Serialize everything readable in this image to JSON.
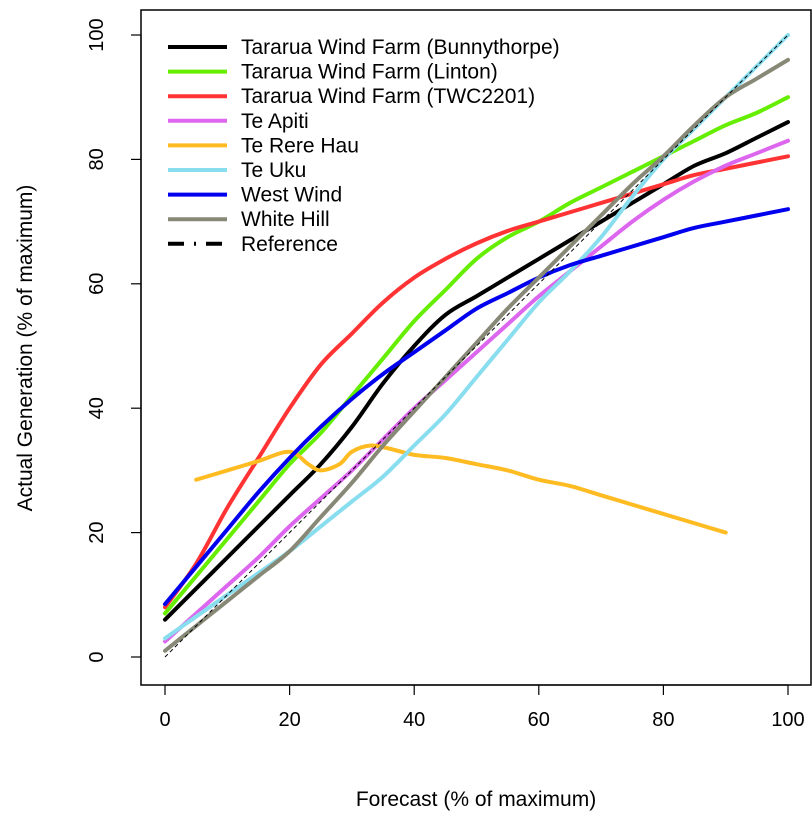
{
  "chart_data": {
    "type": "line",
    "title": "",
    "xlabel": "Forecast (% of maximum)",
    "ylabel": "Actual Generation (% of maximum)",
    "xlim": [
      0,
      100
    ],
    "ylim": [
      0,
      100
    ],
    "xticks": [
      0,
      20,
      40,
      60,
      80,
      100
    ],
    "yticks": [
      0,
      20,
      40,
      60,
      80,
      100
    ],
    "grid": false,
    "legend_position": "top-left",
    "series": [
      {
        "name": "Tararua Wind Farm (Bunnythorpe)",
        "color": "#000000",
        "x": [
          0,
          5,
          10,
          15,
          20,
          25,
          30,
          35,
          40,
          45,
          50,
          55,
          60,
          65,
          70,
          75,
          80,
          85,
          90,
          95,
          100
        ],
        "y": [
          6,
          11,
          16,
          21,
          26,
          31,
          37,
          44,
          50,
          55,
          58,
          61,
          64,
          67,
          70,
          73,
          76,
          79,
          81,
          83.5,
          86
        ]
      },
      {
        "name": "Tararua Wind Farm (Linton)",
        "color": "#66ee00",
        "x": [
          0,
          5,
          10,
          15,
          20,
          25,
          30,
          35,
          40,
          45,
          50,
          55,
          60,
          65,
          70,
          75,
          80,
          85,
          90,
          95,
          100
        ],
        "y": [
          7,
          13,
          19,
          25,
          31,
          36,
          42,
          48,
          54,
          59,
          64,
          67.5,
          70,
          73,
          75.5,
          78,
          80.5,
          83,
          85.5,
          87.5,
          90
        ]
      },
      {
        "name": "Tararua Wind Farm (TWC2201)",
        "color": "#ff3333",
        "x": [
          0,
          5,
          10,
          15,
          20,
          25,
          30,
          35,
          40,
          45,
          50,
          55,
          60,
          65,
          70,
          75,
          80,
          85,
          90,
          95,
          100
        ],
        "y": [
          8,
          15,
          24,
          32,
          40,
          47,
          52,
          57,
          61,
          64,
          66.5,
          68.5,
          70,
          71.5,
          73,
          74.5,
          76,
          77.5,
          78.5,
          79.5,
          80.5
        ]
      },
      {
        "name": "Te Apiti",
        "color": "#dd66ee",
        "x": [
          0,
          5,
          10,
          15,
          20,
          25,
          30,
          35,
          40,
          45,
          50,
          55,
          60,
          65,
          70,
          75,
          80,
          85,
          90,
          95,
          100
        ],
        "y": [
          2.5,
          7,
          11.5,
          16,
          21,
          25.5,
          30,
          35,
          40,
          44.5,
          49,
          53.5,
          58,
          62,
          66,
          70,
          73.5,
          76.5,
          79,
          81,
          83
        ]
      },
      {
        "name": "Te Rere Hau",
        "color": "#ffbb22",
        "x": [
          5,
          10,
          15,
          20,
          23,
          25,
          28,
          30,
          33,
          36,
          40,
          45,
          50,
          55,
          60,
          65,
          70,
          75,
          80,
          85,
          90
        ],
        "y": [
          28.5,
          30,
          31.5,
          33,
          31,
          30,
          31,
          33,
          34,
          33.5,
          32.5,
          32,
          31,
          30,
          28.5,
          27.5,
          26,
          24.5,
          23,
          21.5,
          20
        ]
      },
      {
        "name": "Te Uku",
        "color": "#88ddee",
        "x": [
          0,
          5,
          10,
          15,
          20,
          25,
          30,
          35,
          40,
          45,
          50,
          55,
          60,
          65,
          70,
          75,
          80,
          85,
          90,
          95,
          100
        ],
        "y": [
          3,
          6.5,
          10,
          13.5,
          17,
          21,
          25,
          29,
          34,
          39,
          45,
          51,
          57,
          62,
          67.5,
          74,
          80,
          85,
          90,
          95,
          100
        ]
      },
      {
        "name": "West Wind",
        "color": "#0000ee",
        "x": [
          0,
          5,
          10,
          15,
          20,
          25,
          30,
          35,
          40,
          45,
          50,
          55,
          60,
          65,
          70,
          75,
          80,
          85,
          90,
          95,
          100
        ],
        "y": [
          8.5,
          14.5,
          20.5,
          26.5,
          32,
          37,
          41.5,
          45.5,
          49,
          52.5,
          56,
          58.5,
          61,
          63,
          64.5,
          66,
          67.5,
          69,
          70,
          71,
          72
        ]
      },
      {
        "name": "White Hill",
        "color": "#888877",
        "x": [
          0,
          5,
          10,
          15,
          20,
          25,
          30,
          35,
          40,
          45,
          50,
          55,
          60,
          65,
          70,
          75,
          80,
          85,
          90,
          95,
          100
        ],
        "y": [
          1,
          5,
          9,
          13,
          17,
          22.5,
          28,
          34,
          39.5,
          45,
          50.5,
          56,
          61,
          66,
          71,
          76,
          80.5,
          85.5,
          90,
          93,
          96
        ]
      },
      {
        "name": "Reference",
        "color": "#000000",
        "dashed": true,
        "x": [
          0,
          100
        ],
        "y": [
          0,
          100
        ]
      }
    ]
  }
}
